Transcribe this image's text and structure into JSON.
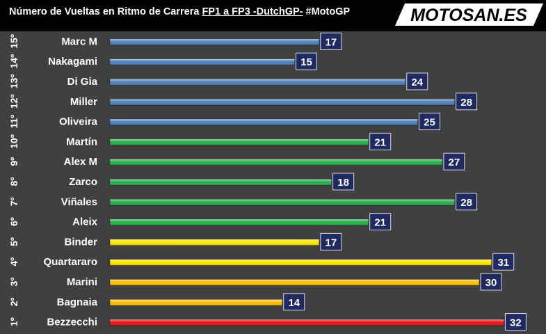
{
  "title": {
    "part1": "Número de Vueltas en Ritmo de Carrera ",
    "part2": "FP1 a FP3 -DutchGP-",
    "part3": " #MotoGP"
  },
  "logo": {
    "text": "MOTOSAN.ES"
  },
  "colors": {
    "background": "#000000",
    "plot_background": "#404040",
    "bar_blue": "#4f81bd",
    "bar_green": "#22b14c",
    "bar_yellow": "#ffe800",
    "bar_amber": "#ffc000",
    "bar_red": "#ee1111",
    "label_box": "#1f2a63"
  },
  "chart_data": {
    "type": "bar",
    "orientation": "horizontal",
    "title": "Número de Vueltas en Ritmo de Carrera FP1 a FP3 -DutchGP- #MotoGP",
    "xlim": [
      0,
      34
    ],
    "grid": false,
    "rows": [
      {
        "position": "15º",
        "rider": "Marc M",
        "value": 17,
        "color": "#4f81bd"
      },
      {
        "position": "14º",
        "rider": "Nakagami",
        "value": 15,
        "color": "#4f81bd"
      },
      {
        "position": "13º",
        "rider": "Di Gia",
        "value": 24,
        "color": "#4f81bd"
      },
      {
        "position": "12º",
        "rider": "Miller",
        "value": 28,
        "color": "#4f81bd"
      },
      {
        "position": "11º",
        "rider": "Oliveira",
        "value": 25,
        "color": "#4f81bd"
      },
      {
        "position": "10º",
        "rider": "Martín",
        "value": 21,
        "color": "#22b14c"
      },
      {
        "position": "9º",
        "rider": "Alex M",
        "value": 27,
        "color": "#22b14c"
      },
      {
        "position": "8º",
        "rider": "Zarco",
        "value": 18,
        "color": "#22b14c"
      },
      {
        "position": "7º",
        "rider": "Viñales",
        "value": 28,
        "color": "#22b14c"
      },
      {
        "position": "6º",
        "rider": "Aleix",
        "value": 21,
        "color": "#22b14c"
      },
      {
        "position": "5º",
        "rider": "Binder",
        "value": 17,
        "color": "#ffe800"
      },
      {
        "position": "4º",
        "rider": "Quartararo",
        "value": 31,
        "color": "#ffe800"
      },
      {
        "position": "3º",
        "rider": "Marini",
        "value": 30,
        "color": "#ffc000"
      },
      {
        "position": "2º",
        "rider": "Bagnaia",
        "value": 14,
        "color": "#ffc000"
      },
      {
        "position": "1º",
        "rider": "Bezzecchi",
        "value": 32,
        "color": "#ee1111"
      }
    ]
  }
}
